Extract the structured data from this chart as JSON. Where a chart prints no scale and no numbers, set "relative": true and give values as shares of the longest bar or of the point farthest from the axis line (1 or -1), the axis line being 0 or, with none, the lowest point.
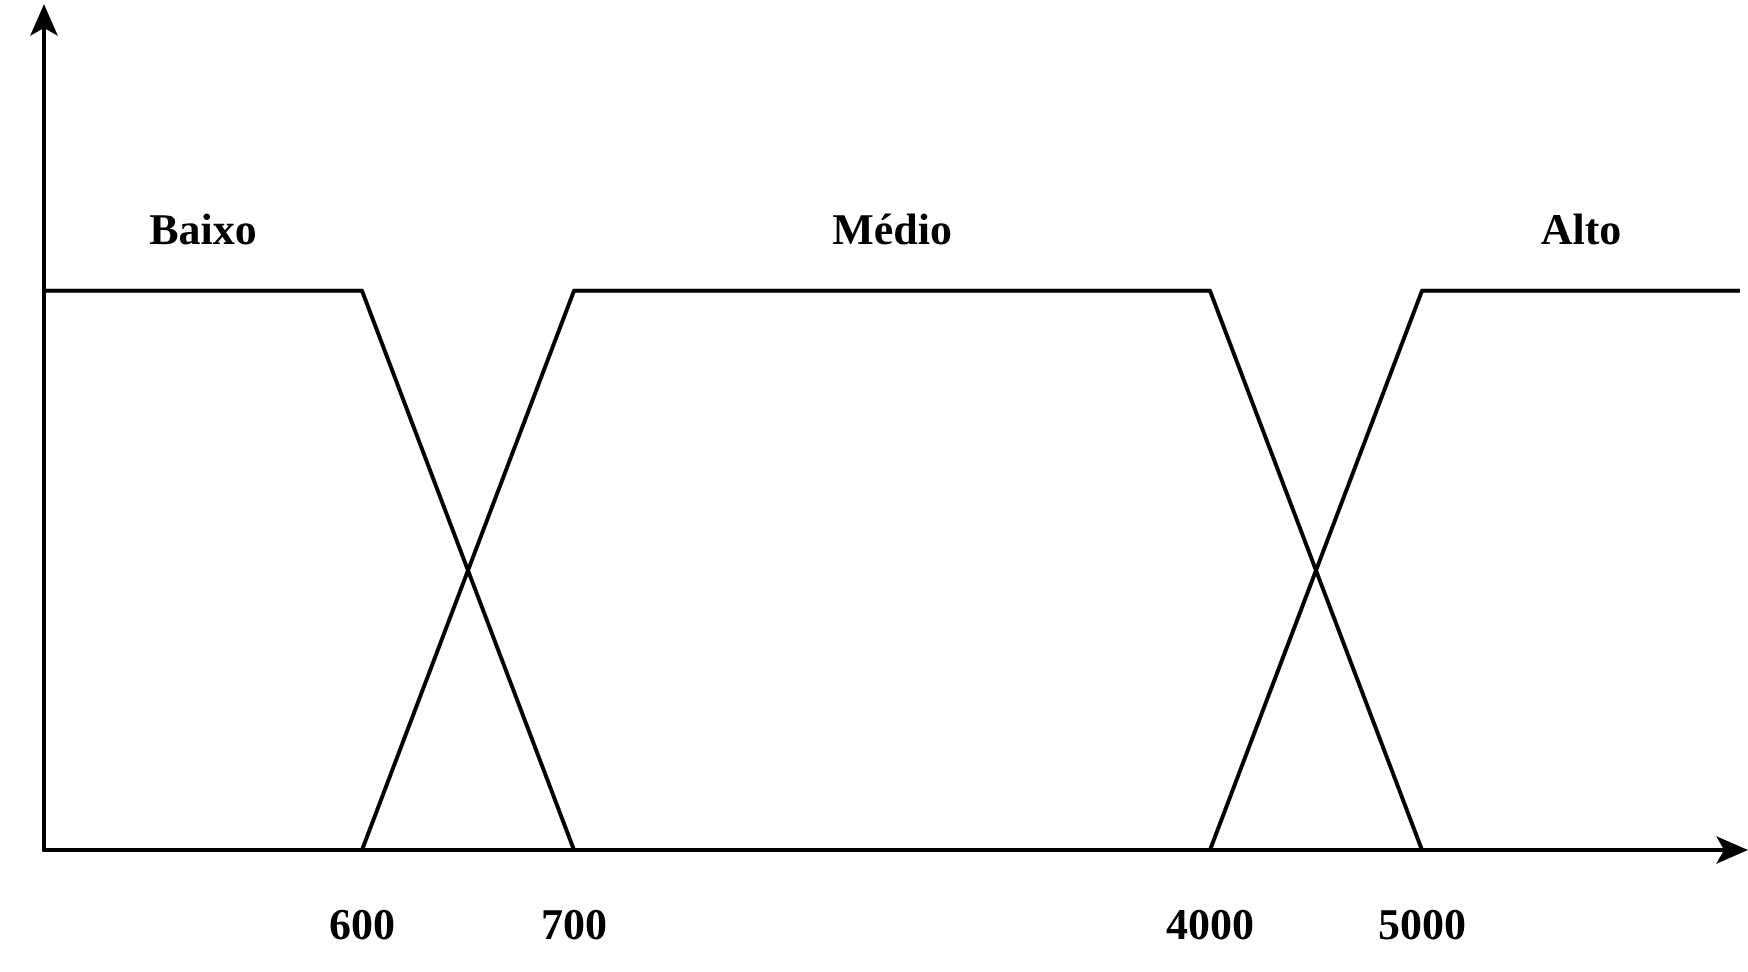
{
  "chart_data": {
    "type": "line",
    "relative": true,
    "categories": [
      null,
      null,
      null,
      "600",
      null,
      "700",
      null,
      null,
      null,
      null,
      null,
      "4000",
      null,
      "5000",
      null,
      null,
      null
    ],
    "series": [
      {
        "name": "Baixo",
        "color": "#000000",
        "values": [
          1,
          null,
          null,
          1,
          null,
          0,
          null,
          null,
          null,
          null,
          null,
          null,
          null,
          null,
          null,
          null,
          null
        ]
      },
      {
        "name": "Médio",
        "color": "#000000",
        "values": [
          null,
          null,
          null,
          0,
          null,
          1,
          null,
          null,
          null,
          null,
          null,
          1,
          null,
          0,
          null,
          null,
          null
        ]
      },
      {
        "name": "Alto",
        "color": "#000000",
        "values": [
          null,
          null,
          null,
          null,
          null,
          null,
          null,
          null,
          null,
          null,
          null,
          0,
          null,
          1,
          null,
          null,
          1
        ]
      }
    ],
    "grid": false,
    "legend": false,
    "marker": "none",
    "line_style": "solid"
  }
}
